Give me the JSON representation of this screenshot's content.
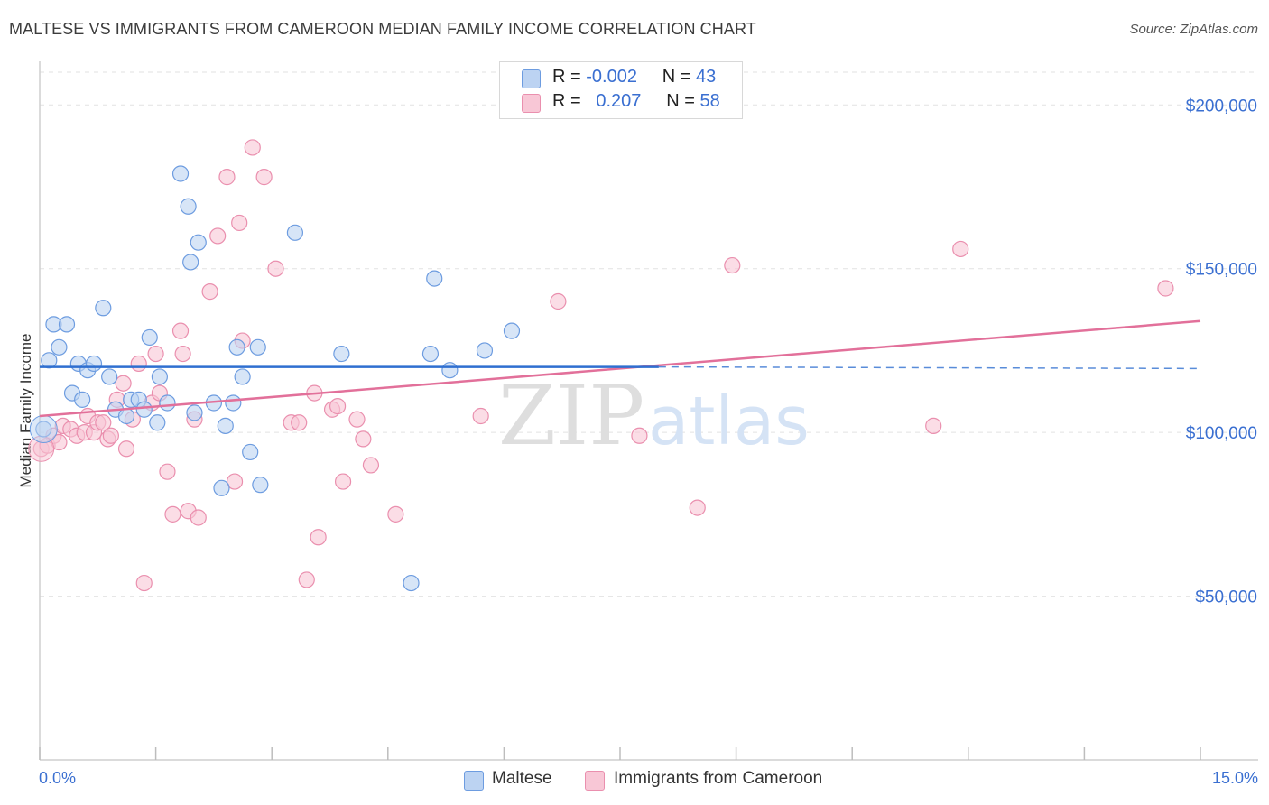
{
  "title": "MALTESE VS IMMIGRANTS FROM CAMEROON MEDIAN FAMILY INCOME CORRELATION CHART",
  "source": "Source: ZipAtlas.com",
  "watermark": {
    "zip": "ZIP",
    "atlas": "atlas"
  },
  "legend_top": [
    {
      "r_label": "R =",
      "r_value": "-0.002",
      "n_label": "N =",
      "n_value": "43"
    },
    {
      "r_label": "R =",
      "r_value": "0.207",
      "n_label": "N =",
      "n_value": "58"
    }
  ],
  "legend_bottom": {
    "maltese": "Maltese",
    "cameroon": "Immigrants from Cameroon"
  },
  "x_axis": {
    "min_label": "0.0%",
    "max_label": "15.0%"
  },
  "colors": {
    "maltese_fill": "#bcd3f2",
    "maltese_stroke": "#6d9ce0",
    "maltese_line": "#2f6fd0",
    "cameroon_fill": "#f8c7d6",
    "cameroon_stroke": "#ea8fae",
    "cameroon_line": "#e2709a",
    "grid": "#e2e2e2",
    "axis_text": "#3a6fd1"
  },
  "chart_data": {
    "type": "scatter",
    "title": "MALTESE VS IMMIGRANTS FROM CAMEROON MEDIAN FAMILY INCOME CORRELATION CHART",
    "xlabel": "",
    "ylabel": "Median Family Income",
    "xlim": [
      0,
      15
    ],
    "ylim": [
      0,
      210000
    ],
    "y_ticks": [
      {
        "value": 50000,
        "label": "$50,000"
      },
      {
        "value": 100000,
        "label": "$100,000"
      },
      {
        "value": 150000,
        "label": "$150,000"
      },
      {
        "value": 200000,
        "label": "$200,000"
      }
    ],
    "x_ticks": [
      0,
      1.5,
      3,
      4.5,
      6,
      7.5,
      9,
      10.5,
      12,
      13.5,
      15
    ],
    "grid": true,
    "legend_position": "top-center",
    "series": [
      {
        "name": "Maltese",
        "points": [
          [
            0.05,
            101000
          ],
          [
            0.12,
            122000
          ],
          [
            0.18,
            133000
          ],
          [
            0.25,
            126000
          ],
          [
            0.35,
            133000
          ],
          [
            0.42,
            112000
          ],
          [
            0.5,
            121000
          ],
          [
            0.55,
            110000
          ],
          [
            0.62,
            119000
          ],
          [
            0.7,
            121000
          ],
          [
            0.82,
            138000
          ],
          [
            0.9,
            117000
          ],
          [
            0.98,
            107000
          ],
          [
            1.12,
            105000
          ],
          [
            1.18,
            110000
          ],
          [
            1.28,
            110000
          ],
          [
            1.35,
            107000
          ],
          [
            1.42,
            129000
          ],
          [
            1.52,
            103000
          ],
          [
            1.55,
            117000
          ],
          [
            1.65,
            109000
          ],
          [
            1.82,
            179000
          ],
          [
            1.92,
            169000
          ],
          [
            1.95,
            152000
          ],
          [
            2.0,
            106000
          ],
          [
            2.05,
            158000
          ],
          [
            2.25,
            109000
          ],
          [
            2.35,
            83000
          ],
          [
            2.4,
            102000
          ],
          [
            2.5,
            109000
          ],
          [
            2.55,
            126000
          ],
          [
            2.62,
            117000
          ],
          [
            2.72,
            94000
          ],
          [
            2.82,
            126000
          ],
          [
            2.85,
            84000
          ],
          [
            3.3,
            161000
          ],
          [
            3.9,
            124000
          ],
          [
            4.8,
            54000
          ],
          [
            5.05,
            124000
          ],
          [
            5.1,
            147000
          ],
          [
            5.3,
            119000
          ],
          [
            5.75,
            125000
          ],
          [
            6.1,
            131000
          ]
        ],
        "trend": {
          "x_start": 0,
          "y_start": 120000,
          "x_end": 8.0,
          "y_end": 120000,
          "dashed_to_x": 15,
          "dashed_y": 119500
        }
      },
      {
        "name": "Immigrants from Cameroon",
        "points": [
          [
            0.02,
            95000
          ],
          [
            0.1,
            96000
          ],
          [
            0.18,
            99000
          ],
          [
            0.25,
            97000
          ],
          [
            0.3,
            102000
          ],
          [
            0.4,
            101000
          ],
          [
            0.48,
            99000
          ],
          [
            0.58,
            100000
          ],
          [
            0.62,
            105000
          ],
          [
            0.7,
            100000
          ],
          [
            0.75,
            103000
          ],
          [
            0.82,
            103000
          ],
          [
            0.88,
            98000
          ],
          [
            0.92,
            99000
          ],
          [
            1.0,
            110000
          ],
          [
            1.08,
            115000
          ],
          [
            1.12,
            95000
          ],
          [
            1.2,
            104000
          ],
          [
            1.28,
            121000
          ],
          [
            1.35,
            54000
          ],
          [
            1.45,
            109000
          ],
          [
            1.5,
            124000
          ],
          [
            1.55,
            112000
          ],
          [
            1.65,
            88000
          ],
          [
            1.72,
            75000
          ],
          [
            1.82,
            131000
          ],
          [
            1.85,
            124000
          ],
          [
            1.92,
            76000
          ],
          [
            2.0,
            104000
          ],
          [
            2.05,
            74000
          ],
          [
            2.2,
            143000
          ],
          [
            2.3,
            160000
          ],
          [
            2.42,
            178000
          ],
          [
            2.52,
            85000
          ],
          [
            2.58,
            164000
          ],
          [
            2.62,
            128000
          ],
          [
            2.75,
            187000
          ],
          [
            2.9,
            178000
          ],
          [
            3.05,
            150000
          ],
          [
            3.25,
            103000
          ],
          [
            3.35,
            103000
          ],
          [
            3.45,
            55000
          ],
          [
            3.55,
            112000
          ],
          [
            3.6,
            68000
          ],
          [
            3.78,
            107000
          ],
          [
            3.85,
            108000
          ],
          [
            3.92,
            85000
          ],
          [
            4.1,
            104000
          ],
          [
            4.18,
            98000
          ],
          [
            4.28,
            90000
          ],
          [
            4.6,
            75000
          ],
          [
            5.7,
            105000
          ],
          [
            6.7,
            140000
          ],
          [
            7.75,
            99000
          ],
          [
            8.5,
            77000
          ],
          [
            8.95,
            151000
          ],
          [
            11.55,
            102000
          ],
          [
            11.9,
            156000
          ],
          [
            14.55,
            144000
          ]
        ],
        "trend": {
          "x_start": 0,
          "y_start": 105000,
          "x_end": 15,
          "y_end": 134000
        }
      }
    ]
  }
}
